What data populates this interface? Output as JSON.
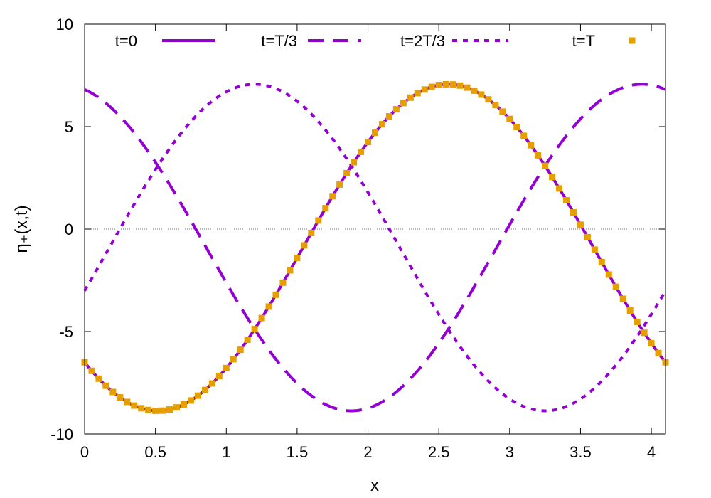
{
  "chart_data": {
    "type": "line",
    "title": "",
    "xlabel": "x",
    "ylabel": "η₊(x,t)",
    "xlim": [
      0,
      4.1
    ],
    "ylim": [
      -10,
      10
    ],
    "x_ticks": [
      0,
      0.5,
      1,
      1.5,
      2,
      2.5,
      3,
      3.5,
      4
    ],
    "x_tick_labels": [
      "0",
      "0.5",
      "1",
      "1.5",
      "2",
      "2.5",
      "3",
      "3.5",
      "4"
    ],
    "y_ticks": [
      -10,
      -5,
      0,
      5,
      10
    ],
    "y_tick_labels": [
      "-10",
      "-5",
      "0",
      "5",
      "10"
    ],
    "zero_line": true,
    "grid": false,
    "legend_position": "top, single row inside plot",
    "curve_model": {
      "form": "y = 7.97*cos(1.5325*(x - phase) + 2.35) - 0.9",
      "offset": -0.9,
      "amplitude": 7.97,
      "wavenumber": 1.5325,
      "phase_const": 2.35
    },
    "series": [
      {
        "name": "t=0",
        "style": "solid",
        "color": "#9400d3",
        "phase": 0
      },
      {
        "name": "t=T/3",
        "style": "dashed",
        "color": "#9400d3",
        "phase": 1.3667
      },
      {
        "name": "t=2T/3",
        "style": "dotted",
        "color": "#9400d3",
        "phase": 2.7333
      },
      {
        "name": "t=T",
        "style": "square-markers",
        "color": "#e69f00",
        "phase": 0,
        "marker_x_start": 0,
        "marker_x_step": 0.05
      }
    ],
    "peak_value": 7.07,
    "trough_value": -8.87
  }
}
